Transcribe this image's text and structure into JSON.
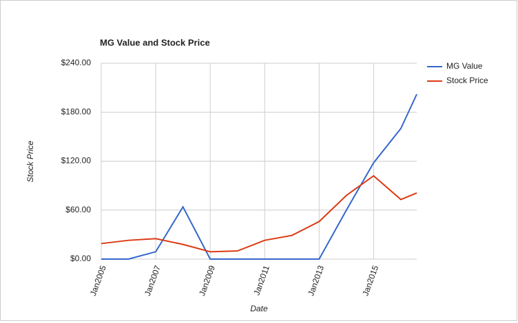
{
  "chart_data": {
    "type": "line",
    "title": "MG Value and Stock Price",
    "x_label": "Date",
    "y_label": "Stock Price",
    "x": [
      "2005-01",
      "2006-01",
      "2007-01",
      "2008-01",
      "2009-01",
      "2010-01",
      "2011-01",
      "2012-01",
      "2013-01",
      "2014-01",
      "2015-01",
      "2016-01",
      "2016-08"
    ],
    "series": [
      {
        "name": "MG Value",
        "color": "#3366cc",
        "values": [
          0,
          0,
          9,
          64,
          0,
          0,
          0,
          0,
          0,
          60,
          118,
          160,
          202
        ]
      },
      {
        "name": "Stock Price",
        "color": "#dc3912",
        "values": [
          19,
          23,
          25,
          18,
          9,
          10,
          23,
          29,
          46,
          78,
          102,
          73,
          81
        ]
      }
    ],
    "xlim": [
      "2005-01",
      "2016-08"
    ],
    "xticks": [
      {
        "value": "2005-01",
        "label": "Jan2005"
      },
      {
        "value": "2007-01",
        "label": "Jan2007"
      },
      {
        "value": "2009-01",
        "label": "Jan2009"
      },
      {
        "value": "2011-01",
        "label": "Jan2011"
      },
      {
        "value": "2013-01",
        "label": "Jan2013"
      },
      {
        "value": "2015-01",
        "label": "Jan2015"
      }
    ],
    "ylim": [
      0,
      240
    ],
    "yticks": [
      {
        "value": 0,
        "label": "$0.00"
      },
      {
        "value": 60,
        "label": "$60.00"
      },
      {
        "value": 120,
        "label": "$120.00"
      },
      {
        "value": 180,
        "label": "$180.00"
      },
      {
        "value": 240,
        "label": "$240.00"
      }
    ],
    "grid": true,
    "legend": "right"
  }
}
